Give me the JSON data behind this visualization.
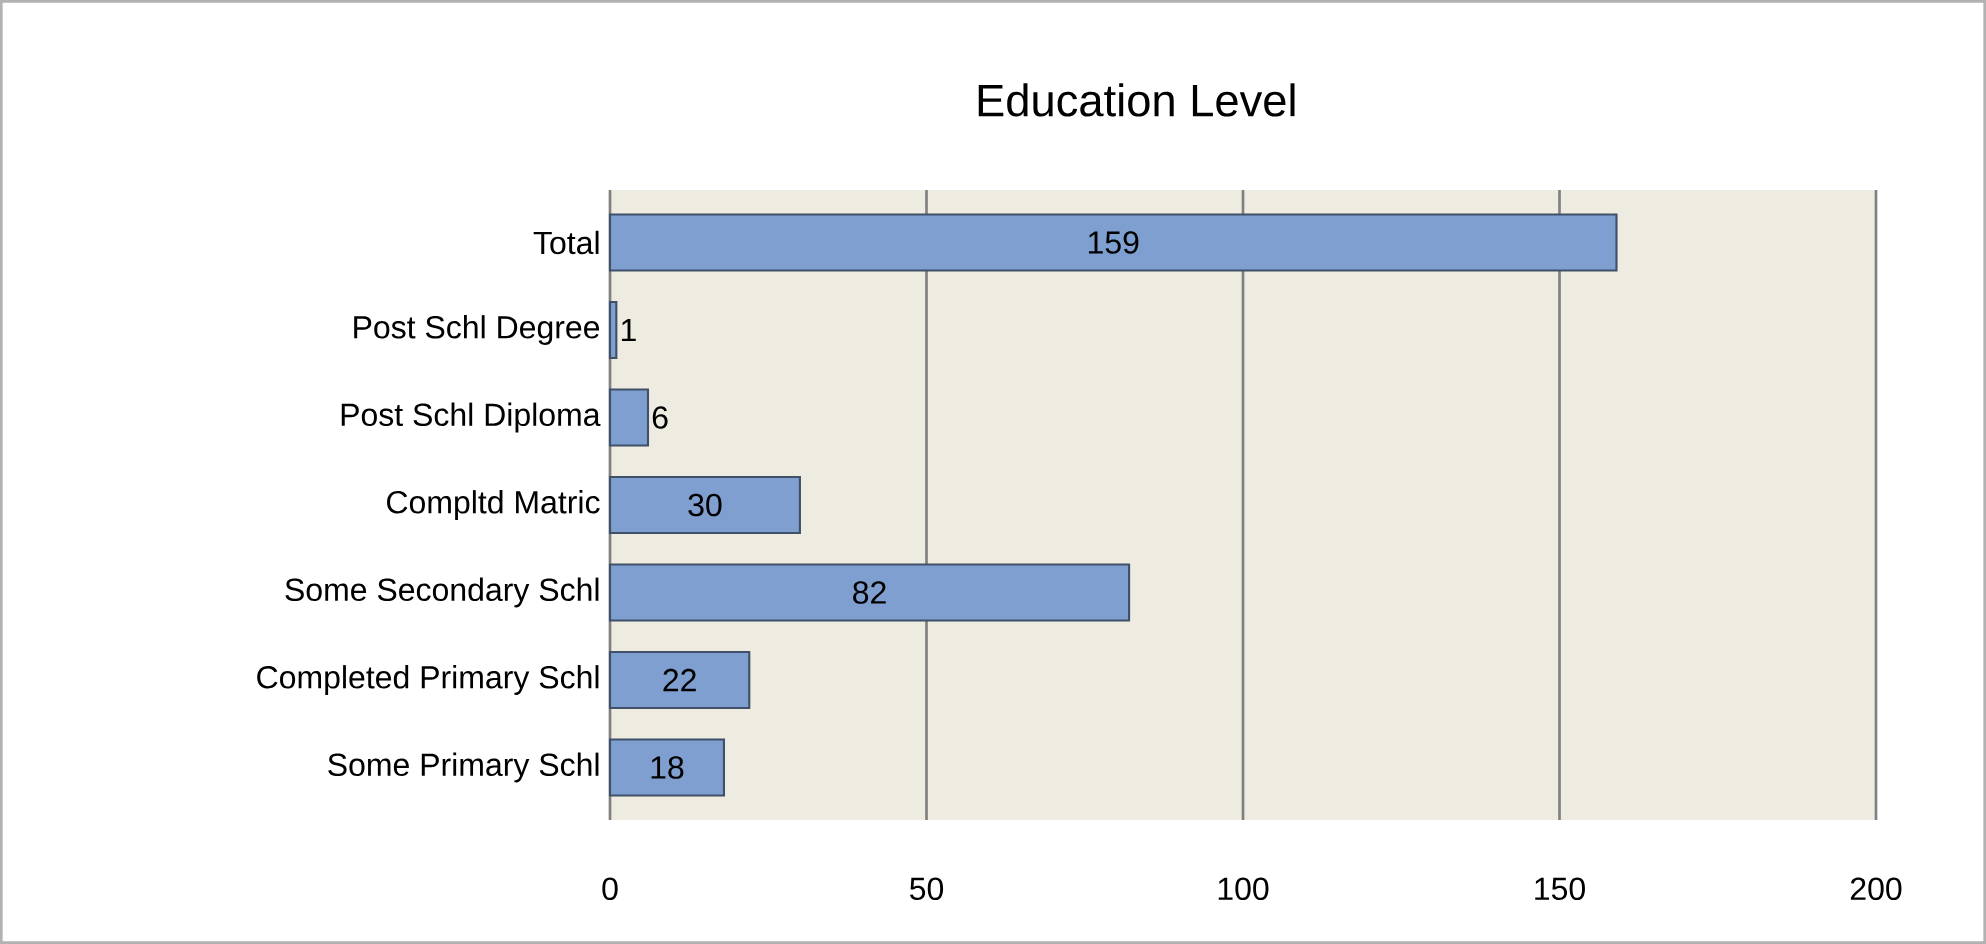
{
  "chart_data": {
    "type": "bar",
    "orientation": "horizontal",
    "title": "Education Level",
    "categories": [
      "Total",
      "Post Schl Degree",
      "Post Schl Diploma",
      "Compltd Matric",
      "Some Secondary Schl",
      "Completed Primary Schl",
      "Some Primary Schl"
    ],
    "values": [
      159,
      1,
      6,
      30,
      82,
      22,
      18
    ],
    "color": "#7f9fd0",
    "xlim": [
      0,
      200
    ],
    "xticks": [
      0,
      50,
      100,
      150,
      200
    ],
    "grid": "x",
    "data_labels": true
  }
}
